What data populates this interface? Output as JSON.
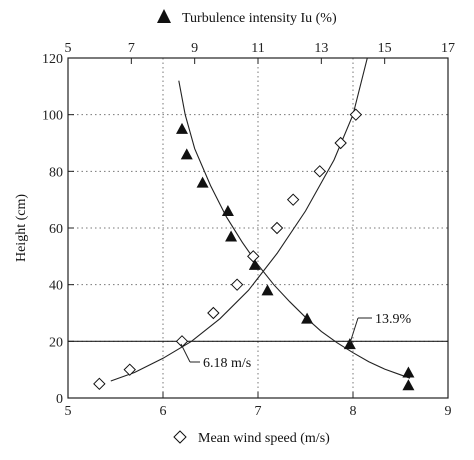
{
  "chart_data": {
    "type": "scatter",
    "top_axis": {
      "label": "Turbulence intensity Iu (%)",
      "lim": [
        5,
        17
      ],
      "ticks": [
        "5",
        "7",
        "9",
        "11",
        "13",
        "15",
        "17"
      ]
    },
    "bottom_axis": {
      "label": "Mean wind speed (m/s)",
      "lim": [
        5,
        9
      ],
      "ticks": [
        "5",
        "6",
        "7",
        "8",
        "9"
      ]
    },
    "y_axis": {
      "label": "Height (cm)",
      "lim": [
        0,
        120
      ],
      "ticks": [
        "0",
        "20",
        "40",
        "60",
        "80",
        "100",
        "120"
      ]
    },
    "grid": "dotted",
    "series": [
      {
        "name": "Turbulence intensity Iu (%)",
        "marker": "filled-triangle",
        "axis": "top",
        "points": [
          [
            8.6,
            95
          ],
          [
            8.75,
            86
          ],
          [
            9.25,
            76
          ],
          [
            10.05,
            66
          ],
          [
            10.15,
            57
          ],
          [
            10.9,
            47
          ],
          [
            11.3,
            38
          ],
          [
            12.55,
            28
          ],
          [
            13.9,
            19
          ],
          [
            15.75,
            9
          ],
          [
            15.75,
            4.5
          ]
        ]
      },
      {
        "name": "Mean wind speed (m/s)",
        "marker": "open-diamond",
        "axis": "bottom",
        "points": [
          [
            5.33,
            5
          ],
          [
            5.65,
            10
          ],
          [
            6.2,
            20
          ],
          [
            6.53,
            30
          ],
          [
            6.78,
            40
          ],
          [
            6.95,
            50
          ],
          [
            7.2,
            60
          ],
          [
            7.37,
            70
          ],
          [
            7.65,
            80
          ],
          [
            7.87,
            90
          ],
          [
            8.03,
            100
          ]
        ]
      }
    ],
    "fit_curves": {
      "turbulence_fit": [
        [
          8.5,
          112
        ],
        [
          8.7,
          100
        ],
        [
          9.0,
          88
        ],
        [
          9.5,
          75
        ],
        [
          10.0,
          64
        ],
        [
          10.5,
          55
        ],
        [
          11.0,
          47
        ],
        [
          11.5,
          40
        ],
        [
          12.0,
          34
        ],
        [
          12.5,
          28.5
        ],
        [
          13.0,
          23.5
        ],
        [
          13.5,
          19.5
        ],
        [
          14.0,
          16
        ],
        [
          14.5,
          12.8
        ],
        [
          15.0,
          10.2
        ],
        [
          15.5,
          8.2
        ],
        [
          15.8,
          7
        ]
      ],
      "wind_speed_fit": [
        [
          5.45,
          6
        ],
        [
          5.7,
          9
        ],
        [
          6.0,
          14
        ],
        [
          6.3,
          20
        ],
        [
          6.6,
          28
        ],
        [
          6.9,
          38
        ],
        [
          7.2,
          51
        ],
        [
          7.5,
          66
        ],
        [
          7.8,
          84
        ],
        [
          8.0,
          100
        ],
        [
          8.15,
          120
        ]
      ]
    },
    "reference_line": {
      "height": 20
    },
    "annotations": [
      {
        "text": "13.9%"
      },
      {
        "text": "6.18 m/s"
      }
    ]
  },
  "legend": {
    "top_marker_icon": "filled-triangle",
    "bottom_marker_icon": "open-diamond"
  }
}
